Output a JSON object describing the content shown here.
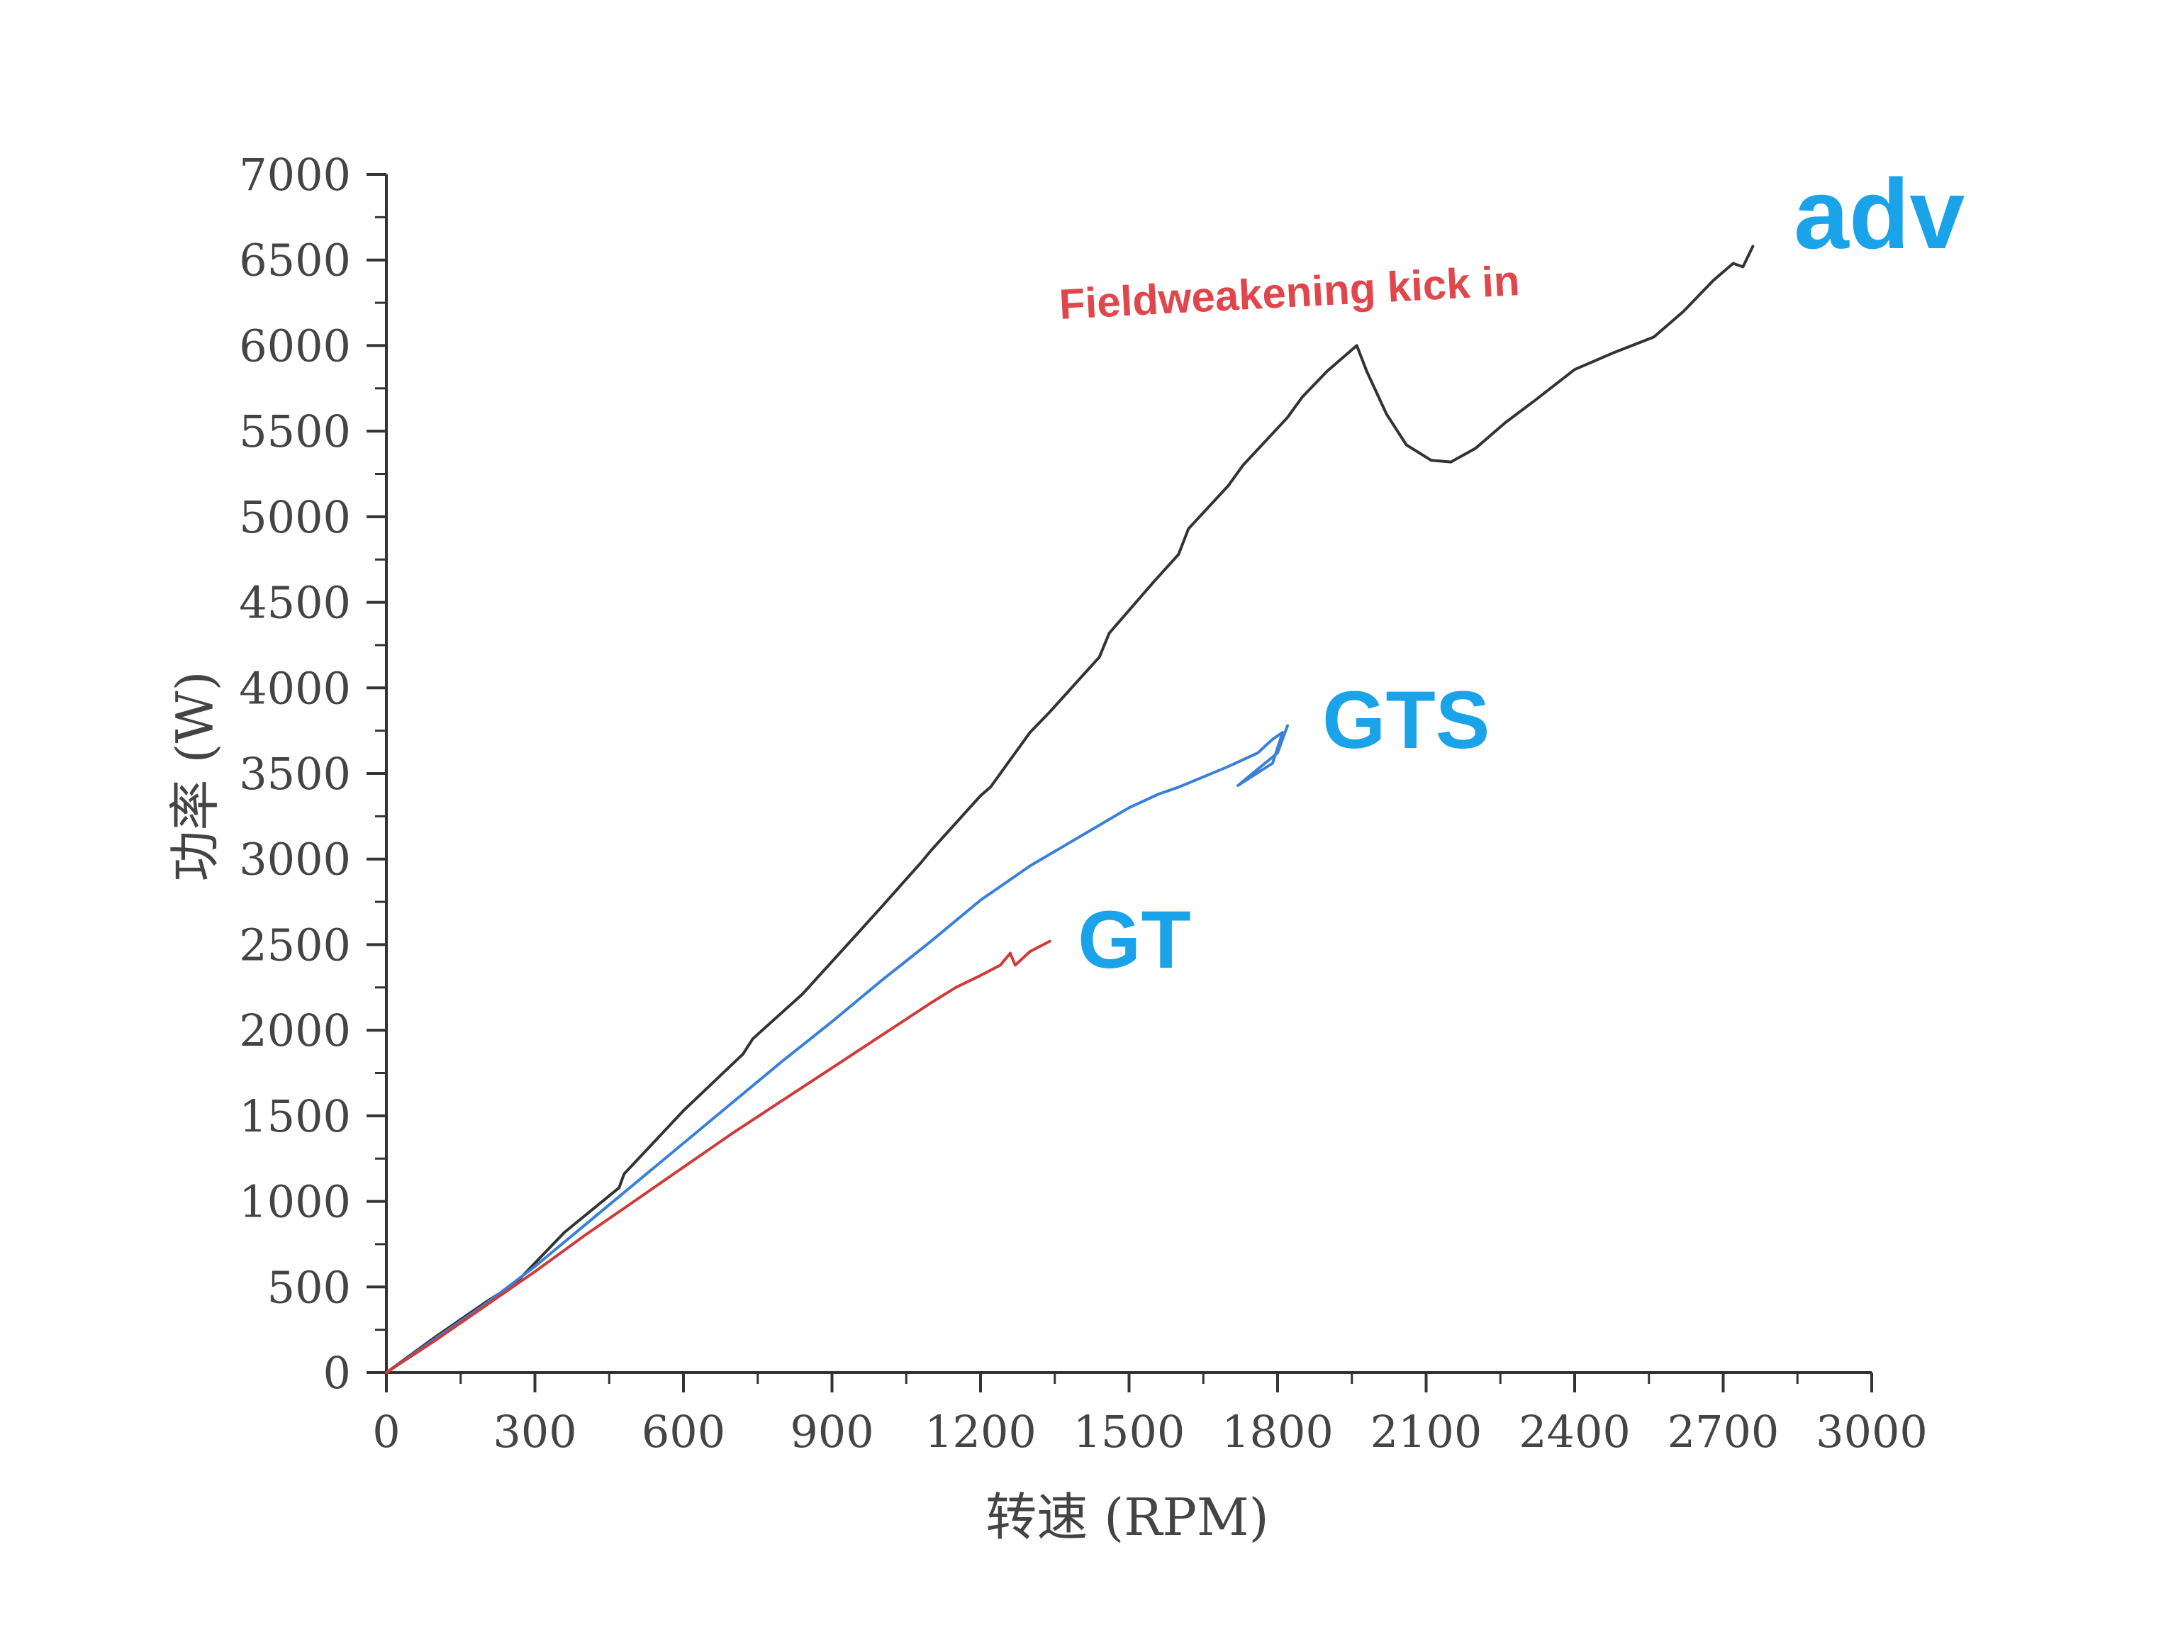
{
  "chart_data": {
    "type": "line",
    "xlabel": "转速 (RPM)",
    "ylabel": "功率 (W)",
    "xlim": [
      0,
      3000
    ],
    "ylim": [
      0,
      7000
    ],
    "x_ticks": [
      "0",
      "300",
      "600",
      "900",
      "1200",
      "1500",
      "1800",
      "2100",
      "2400",
      "2700",
      "3000"
    ],
    "y_ticks": [
      "0",
      "500",
      "1000",
      "1500",
      "2000",
      "2500",
      "3000",
      "3500",
      "4000",
      "4500",
      "5000",
      "5500",
      "6000",
      "6500",
      "7000"
    ],
    "grid": false,
    "series": [
      {
        "name": "adv",
        "color": "#333333",
        "points": [
          [
            0,
            0
          ],
          [
            100,
            210
          ],
          [
            200,
            410
          ],
          [
            260,
            520
          ],
          [
            360,
            820
          ],
          [
            470,
            1080
          ],
          [
            480,
            1160
          ],
          [
            600,
            1530
          ],
          [
            720,
            1860
          ],
          [
            740,
            1950
          ],
          [
            840,
            2210
          ],
          [
            950,
            2560
          ],
          [
            1000,
            2720
          ],
          [
            1080,
            2980
          ],
          [
            1100,
            3050
          ],
          [
            1200,
            3370
          ],
          [
            1220,
            3420
          ],
          [
            1300,
            3740
          ],
          [
            1340,
            3860
          ],
          [
            1440,
            4180
          ],
          [
            1460,
            4320
          ],
          [
            1550,
            4620
          ],
          [
            1600,
            4780
          ],
          [
            1620,
            4930
          ],
          [
            1700,
            5180
          ],
          [
            1730,
            5300
          ],
          [
            1820,
            5580
          ],
          [
            1850,
            5700
          ],
          [
            1900,
            5850
          ],
          [
            1960,
            6000
          ],
          [
            1980,
            5850
          ],
          [
            2020,
            5600
          ],
          [
            2060,
            5420
          ],
          [
            2110,
            5330
          ],
          [
            2150,
            5320
          ],
          [
            2200,
            5400
          ],
          [
            2260,
            5550
          ],
          [
            2320,
            5680
          ],
          [
            2400,
            5860
          ],
          [
            2480,
            5960
          ],
          [
            2560,
            6050
          ],
          [
            2620,
            6200
          ],
          [
            2680,
            6380
          ],
          [
            2720,
            6480
          ],
          [
            2740,
            6460
          ],
          [
            2760,
            6580
          ]
        ]
      },
      {
        "name": "GTS",
        "color": "#3a80d8",
        "points": [
          [
            0,
            0
          ],
          [
            100,
            200
          ],
          [
            200,
            400
          ],
          [
            300,
            620
          ],
          [
            400,
            860
          ],
          [
            500,
            1100
          ],
          [
            600,
            1340
          ],
          [
            700,
            1580
          ],
          [
            800,
            1820
          ],
          [
            900,
            2050
          ],
          [
            1000,
            2290
          ],
          [
            1100,
            2520
          ],
          [
            1200,
            2760
          ],
          [
            1300,
            2960
          ],
          [
            1400,
            3130
          ],
          [
            1500,
            3300
          ],
          [
            1560,
            3380
          ],
          [
            1600,
            3420
          ],
          [
            1650,
            3480
          ],
          [
            1700,
            3540
          ],
          [
            1760,
            3620
          ],
          [
            1790,
            3700
          ],
          [
            1810,
            3740
          ],
          [
            1790,
            3560
          ],
          [
            1720,
            3430
          ],
          [
            1800,
            3620
          ],
          [
            1820,
            3780
          ]
        ]
      },
      {
        "name": "GT",
        "color": "#d03a3a",
        "points": [
          [
            0,
            0
          ],
          [
            100,
            190
          ],
          [
            200,
            390
          ],
          [
            300,
            590
          ],
          [
            400,
            800
          ],
          [
            500,
            1000
          ],
          [
            600,
            1200
          ],
          [
            700,
            1400
          ],
          [
            800,
            1590
          ],
          [
            900,
            1780
          ],
          [
            1000,
            1970
          ],
          [
            1100,
            2160
          ],
          [
            1150,
            2250
          ],
          [
            1200,
            2320
          ],
          [
            1240,
            2380
          ],
          [
            1260,
            2450
          ],
          [
            1270,
            2380
          ],
          [
            1300,
            2460
          ],
          [
            1340,
            2520
          ]
        ]
      }
    ],
    "series_labels": [
      "adv",
      "GTS",
      "GT"
    ],
    "annotation": "Fieldweakening kick in"
  }
}
